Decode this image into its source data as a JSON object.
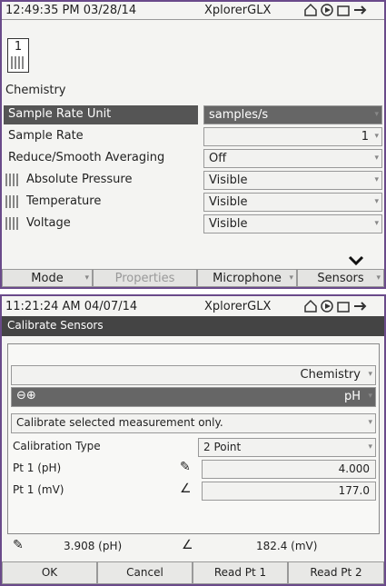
{
  "top": {
    "status": {
      "time": "12:49:35 PM 03/28/14",
      "app": "XplorerGLX"
    },
    "icon_number": "1",
    "section": "Chemistry",
    "rows": [
      {
        "label": "Sample Rate Unit",
        "value": "samples/s"
      },
      {
        "label": "Sample Rate",
        "value": "1"
      },
      {
        "label": "Reduce/Smooth Averaging",
        "value": "Off"
      },
      {
        "label": "Absolute Pressure",
        "value": "Visible"
      },
      {
        "label": "Temperature",
        "value": "Visible"
      },
      {
        "label": "Voltage",
        "value": "Visible"
      }
    ],
    "tabs": [
      "Mode",
      "Properties",
      "Microphone",
      "Sensors"
    ]
  },
  "bottom": {
    "status": {
      "time": "11:21:24 AM 04/07/14",
      "app": "XplorerGLX"
    },
    "title": "Calibrate Sensors",
    "sensor": "Chemistry",
    "measurement": "pH",
    "option": "Calibrate selected measurement only.",
    "rows": [
      {
        "label": "Calibration Type",
        "value": "2 Point"
      },
      {
        "label": "Pt 1 (pH)",
        "value": "4.000"
      },
      {
        "label": "Pt 1 (mV)",
        "value": "177.0"
      }
    ],
    "readings": [
      "3.908 (pH)",
      "182.4 (mV)"
    ],
    "buttons": [
      "OK",
      "Cancel",
      "Read Pt 1",
      "Read Pt 2"
    ]
  }
}
